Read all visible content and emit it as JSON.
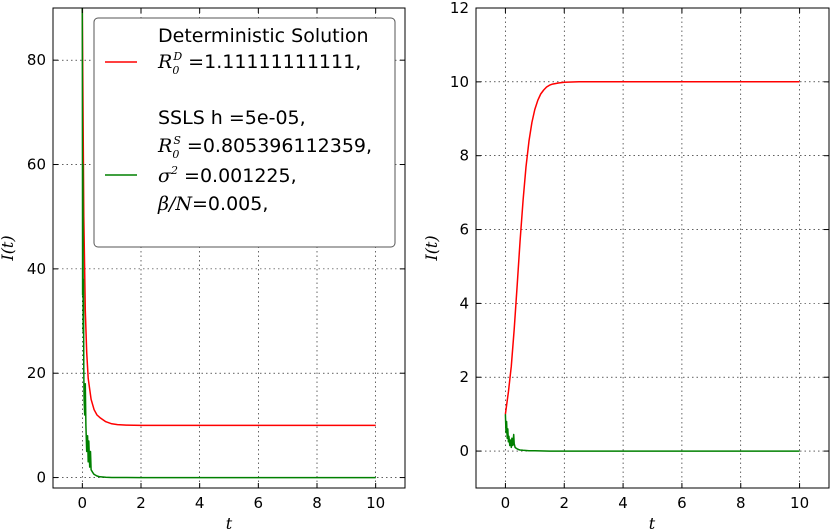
{
  "chart_data": [
    {
      "type": "line",
      "xlabel": "t",
      "ylabel": "I(t)",
      "xlim": [
        -1,
        11
      ],
      "ylim": [
        -2,
        90
      ],
      "xticks": [
        0,
        2,
        4,
        6,
        8,
        10
      ],
      "yticks": [
        0,
        20,
        40,
        60,
        80
      ],
      "xtick_labels": [
        "0",
        "2",
        "4",
        "6",
        "8",
        "10"
      ],
      "ytick_labels": [
        "0",
        "20",
        "40",
        "60",
        "80"
      ],
      "grid": true,
      "legend_position": "top-right",
      "legend": {
        "entry1_line1": "Deterministic Solution",
        "entry1_line2_sym": "R",
        "entry1_line2_sub": "0",
        "entry1_line2_sup": "D",
        "entry1_line2_val": " =1.11111111111,",
        "entry2_line1": "SSLS h =5e-05,",
        "entry2_line2_sym": "R",
        "entry2_line2_sub": "0",
        "entry2_line2_sup": "S",
        "entry2_line2_val": " =0.805396112359,",
        "entry2_line3_sym": "σ",
        "entry2_line3_sup": "2",
        "entry2_line3_val": " =0.001225,",
        "entry2_line4_sym": "β/N",
        "entry2_line4_val": "=0.005,"
      },
      "series": [
        {
          "color": "#ff0000",
          "x": [
            0,
            0.05,
            0.1,
            0.15,
            0.2,
            0.3,
            0.4,
            0.5,
            0.6,
            0.8,
            1.0,
            1.2,
            1.5,
            2,
            3,
            4,
            5,
            6,
            7,
            8,
            9,
            10
          ],
          "y": [
            90,
            50,
            32,
            24,
            19,
            15,
            13,
            12,
            11.5,
            10.7,
            10.3,
            10.15,
            10.05,
            10.0,
            10.0,
            10.0,
            10.0,
            10.0,
            10.0,
            10.0,
            10.0,
            10.0
          ]
        },
        {
          "color": "#008000",
          "x": [
            0,
            0.01,
            0.02,
            0.03,
            0.04,
            0.05,
            0.06,
            0.08,
            0.1,
            0.12,
            0.15,
            0.18,
            0.2,
            0.22,
            0.25,
            0.28,
            0.3,
            0.35,
            0.4,
            0.5,
            0.6,
            0.8,
            1.0,
            2,
            4,
            6,
            8,
            10
          ],
          "y": [
            90,
            35,
            60,
            28,
            38,
            20,
            15,
            12,
            18,
            10,
            5,
            8,
            3,
            7,
            2,
            5,
            1.5,
            1.0,
            0.6,
            0.3,
            0.15,
            0.05,
            0.02,
            0.0,
            0.0,
            0.0,
            0.0,
            0.0
          ]
        }
      ]
    },
    {
      "type": "line",
      "xlabel": "t",
      "ylabel": "I(t)",
      "xlim": [
        -1,
        11
      ],
      "ylim": [
        -1,
        12
      ],
      "xticks": [
        0,
        2,
        4,
        6,
        8,
        10
      ],
      "yticks": [
        0,
        2,
        4,
        6,
        8,
        10,
        12
      ],
      "xtick_labels": [
        "0",
        "2",
        "4",
        "6",
        "8",
        "10"
      ],
      "ytick_labels": [
        "0",
        "2",
        "4",
        "6",
        "8",
        "10",
        "12"
      ],
      "grid": true,
      "series": [
        {
          "color": "#ff0000",
          "x": [
            0,
            0.1,
            0.2,
            0.3,
            0.4,
            0.5,
            0.6,
            0.7,
            0.8,
            0.9,
            1.0,
            1.1,
            1.2,
            1.3,
            1.4,
            1.5,
            1.6,
            1.8,
            2.0,
            2.5,
            3,
            4,
            5,
            6,
            7,
            8,
            9,
            10
          ],
          "y": [
            1.0,
            1.6,
            2.3,
            3.3,
            4.5,
            5.7,
            6.8,
            7.7,
            8.4,
            8.9,
            9.25,
            9.5,
            9.67,
            9.78,
            9.86,
            9.91,
            9.94,
            9.97,
            9.99,
            10.0,
            10.0,
            10.0,
            10.0,
            10.0,
            10.0,
            10.0,
            10.0,
            10.0
          ]
        },
        {
          "color": "#008000",
          "x": [
            0,
            0.02,
            0.04,
            0.06,
            0.08,
            0.1,
            0.12,
            0.15,
            0.18,
            0.2,
            0.22,
            0.25,
            0.28,
            0.3,
            0.33,
            0.36,
            0.4,
            0.45,
            0.5,
            0.6,
            0.8,
            1.0,
            1.5,
            2,
            4,
            6,
            8,
            10
          ],
          "y": [
            1.0,
            0.5,
            0.8,
            0.35,
            0.6,
            0.25,
            0.4,
            0.15,
            0.3,
            0.1,
            0.35,
            0.15,
            0.45,
            0.2,
            0.1,
            0.08,
            0.06,
            0.04,
            0.03,
            0.02,
            0.01,
            0.01,
            0.0,
            0.0,
            0.0,
            0.0,
            0.0,
            0.0
          ]
        }
      ]
    }
  ]
}
